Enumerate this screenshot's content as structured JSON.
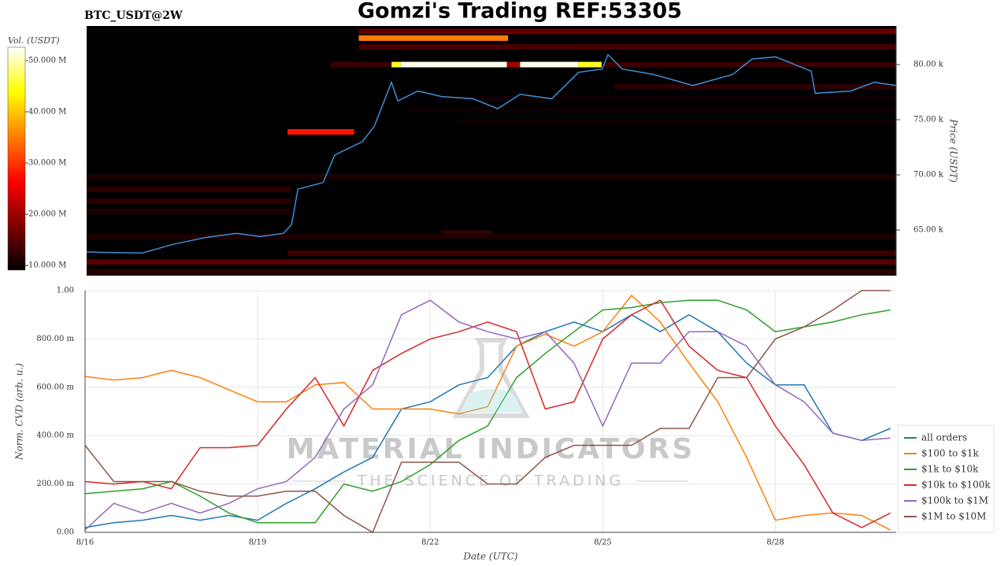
{
  "chart_data": [
    {
      "type": "heatmap",
      "title": "Gomzi's Trading REF:53305",
      "subtitle": "BTC_USDT@2W",
      "ylabel": "Price (USDT)",
      "xlim": [
        16,
        30.1
      ],
      "ylim": [
        60860,
        83500
      ],
      "yticks": [
        {
          "value": 65000,
          "label": "65.00 k"
        },
        {
          "value": 70000,
          "label": "70.00 k"
        },
        {
          "value": 75000,
          "label": "75.00 k"
        },
        {
          "value": 80000,
          "label": "80.00 k"
        }
      ],
      "x": [
        16.0,
        16.96,
        17.51,
        18.06,
        18.61,
        19.02,
        19.43,
        19.57,
        19.68,
        20.12,
        20.32,
        20.8,
        21.01,
        21.31,
        21.42,
        21.77,
        22.18,
        22.73,
        23.16,
        23.55,
        24.1,
        24.57,
        24.98,
        25.08,
        25.33,
        25.88,
        26.56,
        27.25,
        27.59,
        28.0,
        28.62,
        28.69,
        29.31,
        29.72,
        30.1
      ],
      "values": [
        63000,
        62900,
        63700,
        64300,
        64700,
        64400,
        64700,
        65500,
        68700,
        69300,
        71800,
        73000,
        74400,
        78400,
        76700,
        77600,
        77100,
        76900,
        76000,
        77300,
        76900,
        79300,
        79600,
        80900,
        79600,
        79100,
        78100,
        79100,
        80500,
        80700,
        79400,
        77400,
        77600,
        78400,
        78100
      ],
      "color": "#3a8fd6",
      "heatmap": {
        "price": [
          80000,
          80000,
          80000,
          80000,
          80000,
          82400,
          73900,
          83000,
          81600,
          80000,
          80000,
          78000,
          76900,
          75900,
          74800,
          69800,
          68700,
          67600,
          66700,
          64700,
          64400,
          62900,
          62100,
          61200
        ],
        "start": [
          21.31,
          21.47,
          23.32,
          23.55,
          24.56,
          20.74,
          19.5,
          20.74,
          20.74,
          20.25,
          25.01,
          25.19,
          22.17,
          21.62,
          22.45,
          16.0,
          16.0,
          16.0,
          16.0,
          22.17,
          16.0,
          19.5,
          16.0,
          16.0
        ],
        "end": [
          21.47,
          23.32,
          23.55,
          24.56,
          24.97,
          23.34,
          20.66,
          30.1,
          30.1,
          21.31,
          30.1,
          30.1,
          30.1,
          30.1,
          30.1,
          30.1,
          19.57,
          19.57,
          19.57,
          23.06,
          30.1,
          30.1,
          30.1,
          30.1
        ],
        "volume": [
          45000000,
          52000000,
          20000000,
          52000000,
          45000000,
          35000000,
          28000000,
          16000000,
          14000000,
          13000000,
          13000000,
          12000000,
          10000000,
          10000000,
          10000000,
          11000000,
          12000000,
          12000000,
          11000000,
          13000000,
          11000000,
          13000000,
          15000000,
          12000000
        ]
      },
      "colorbar": {
        "label": "Vol. (USDT)",
        "clim": [
          9100000,
          52600000
        ],
        "ticks": [
          {
            "value": 10000000,
            "label": "10.000 M"
          },
          {
            "value": 20000000,
            "label": "20.000 M"
          },
          {
            "value": 30000000,
            "label": "30.000 M"
          },
          {
            "value": 40000000,
            "label": "40.000 M"
          },
          {
            "value": 50000000,
            "label": "50.000 M"
          }
        ]
      }
    },
    {
      "type": "line",
      "xlabel": "Date (UTC)",
      "ylabel": "Norm. CVD (arb. u.)",
      "xlim": [
        16,
        30.1
      ],
      "ylim": [
        0,
        1
      ],
      "xticks": [
        {
          "value": 16,
          "label": "8/16"
        },
        {
          "value": 19,
          "label": "8/19"
        },
        {
          "value": 22,
          "label": "8/22"
        },
        {
          "value": 25,
          "label": "8/25"
        },
        {
          "value": 28,
          "label": "8/28"
        }
      ],
      "yticks": [
        {
          "value": 0,
          "label": "0.00"
        },
        {
          "value": 0.2,
          "label": "200.00 m"
        },
        {
          "value": 0.4,
          "label": "400.00 m"
        },
        {
          "value": 0.6,
          "label": "600.00 m"
        },
        {
          "value": 0.8,
          "label": "800.00 m"
        },
        {
          "value": 1,
          "label": "1.00"
        }
      ],
      "grid": true,
      "legend": "lower right",
      "annotations": [
        "MATERIAL INDICATORS",
        "THE SCIENCE OF TRADING"
      ],
      "x": [
        16,
        16.5,
        17,
        17.5,
        18,
        18.5,
        19,
        19.5,
        20,
        20.5,
        21,
        21.5,
        22,
        22.5,
        23,
        23.5,
        24,
        24.5,
        25,
        25.5,
        26,
        26.5,
        27,
        27.5,
        28,
        28.5,
        29,
        29.5,
        30
      ],
      "series": [
        {
          "name": "all orders",
          "color": "#1f77b4",
          "values": [
            0.02,
            0.04,
            0.05,
            0.07,
            0.05,
            0.07,
            0.05,
            0.12,
            0.18,
            0.25,
            0.31,
            0.51,
            0.54,
            0.61,
            0.64,
            0.77,
            0.83,
            0.87,
            0.83,
            0.9,
            0.83,
            0.9,
            0.83,
            0.7,
            0.61,
            0.61,
            0.41,
            0.38,
            0.43
          ]
        },
        {
          "name": "$100 to $1k",
          "color": "#ff7f0e",
          "values": [
            0.645,
            0.63,
            0.64,
            0.67,
            0.64,
            0.59,
            0.54,
            0.54,
            0.61,
            0.62,
            0.51,
            0.51,
            0.51,
            0.49,
            0.52,
            0.77,
            0.82,
            0.77,
            0.83,
            0.98,
            0.87,
            0.7,
            0.54,
            0.31,
            0.05,
            0.07,
            0.08,
            0.07,
            0.01
          ]
        },
        {
          "name": "$1k to $10k",
          "color": "#2ca02c",
          "values": [
            0.16,
            0.17,
            0.18,
            0.21,
            0.15,
            0.08,
            0.04,
            0.04,
            0.04,
            0.2,
            0.17,
            0.21,
            0.28,
            0.38,
            0.44,
            0.64,
            0.74,
            0.83,
            0.92,
            0.93,
            0.95,
            0.96,
            0.96,
            0.92,
            0.83,
            0.85,
            0.87,
            0.9,
            0.92
          ]
        },
        {
          "name": "$10k to $100k",
          "color": "#d62728",
          "values": [
            0.21,
            0.2,
            0.21,
            0.18,
            0.35,
            0.35,
            0.36,
            0.51,
            0.64,
            0.44,
            0.67,
            0.74,
            0.8,
            0.83,
            0.87,
            0.83,
            0.51,
            0.54,
            0.8,
            0.9,
            0.96,
            0.77,
            0.67,
            0.64,
            0.44,
            0.28,
            0.08,
            0.02,
            0.08
          ]
        },
        {
          "name": "$100k to $1M",
          "color": "#9467bd",
          "values": [
            0.01,
            0.12,
            0.08,
            0.12,
            0.08,
            0.12,
            0.18,
            0.21,
            0.31,
            0.51,
            0.61,
            0.9,
            0.96,
            0.87,
            0.83,
            0.8,
            0.83,
            0.7,
            0.44,
            0.7,
            0.7,
            0.83,
            0.83,
            0.77,
            0.61,
            0.54,
            0.41,
            0.38,
            0.39
          ]
        },
        {
          "name": "$1M to $10M",
          "color": "#8c564b",
          "values": [
            0.36,
            0.21,
            0.21,
            0.21,
            0.17,
            0.15,
            0.15,
            0.17,
            0.17,
            0.07,
            0,
            0.29,
            0.29,
            0.29,
            0.2,
            0.2,
            0.31,
            0.36,
            0.36,
            0.36,
            0.43,
            0.43,
            0.64,
            0.64,
            0.8,
            0.85,
            0.92,
            1,
            1
          ]
        }
      ]
    }
  ]
}
